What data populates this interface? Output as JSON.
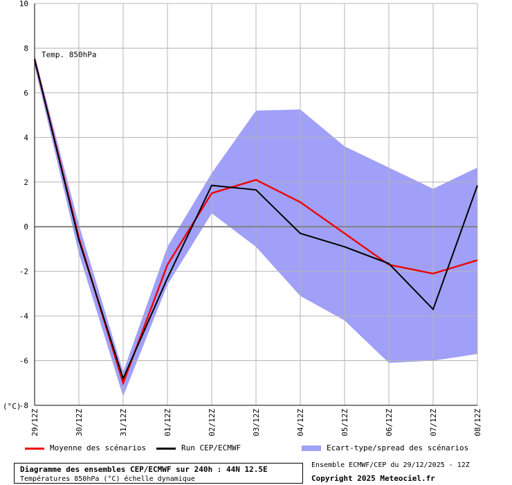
{
  "chart_data": {
    "type": "line",
    "title": "Diagramme des ensembles CEP/ECMWF sur 240h : 44N 12.5E",
    "subtitle": "Températures 850hPa (°C) échelle dynamique",
    "plot_label": "Temp. 850hPa",
    "ylabel": "(°C)",
    "ylim": [
      -8,
      10
    ],
    "yticks": [
      -8,
      -6,
      -4,
      -2,
      0,
      2,
      4,
      6,
      8,
      10
    ],
    "yticks_labels": [
      "-8",
      "-6",
      "-4",
      "-2",
      "0",
      "2",
      "4",
      "6",
      "8",
      "10"
    ],
    "x": [
      "29/12Z",
      "30/12Z",
      "31/12Z",
      "01/12Z",
      "02/12Z",
      "03/12Z",
      "04/12Z",
      "05/12Z",
      "06/12Z",
      "07/12Z",
      "08/12Z"
    ],
    "grid": true,
    "series": [
      {
        "name": "Moyenne des scénarios",
        "color": "#ee0000",
        "values": [
          7.5,
          -0.5,
          -7.0,
          -1.7,
          1.5,
          2.1,
          1.1,
          -0.3,
          -1.7,
          -2.1,
          -1.5
        ]
      },
      {
        "name": "Run CEP/ECMWF",
        "color": "#000000",
        "values": [
          7.5,
          -0.6,
          -6.8,
          -2.3,
          1.85,
          1.65,
          -0.3,
          -0.9,
          -1.65,
          -3.7,
          1.85
        ]
      }
    ],
    "spread": {
      "name": "Ecart-type/spread des scénarios",
      "color": "#a0a0f8",
      "upper": [
        7.7,
        0.1,
        -6.5,
        -0.9,
        2.4,
        5.2,
        5.25,
        3.6,
        2.65,
        1.7,
        2.65
      ],
      "lower": [
        7.2,
        -1.2,
        -7.6,
        -2.6,
        0.6,
        -0.9,
        -3.1,
        -4.2,
        -6.1,
        -6.0,
        -5.7
      ]
    }
  },
  "legend": {
    "mean_label": "Moyenne des scénarios",
    "run_label": "Run CEP/ECMWF",
    "spread_label": "Ecart-type/spread des scénarios"
  },
  "footer": {
    "title": "Diagramme des ensembles CEP/ECMWF sur 240h : 44N 12.5E",
    "subtitle": "Températures 850hPa (°C) échelle dynamique",
    "run_info": "Ensemble ECMWF/CEP du 29/12/2025 - 12Z",
    "copyright": "Copyright 2025 Meteociel.fr"
  }
}
